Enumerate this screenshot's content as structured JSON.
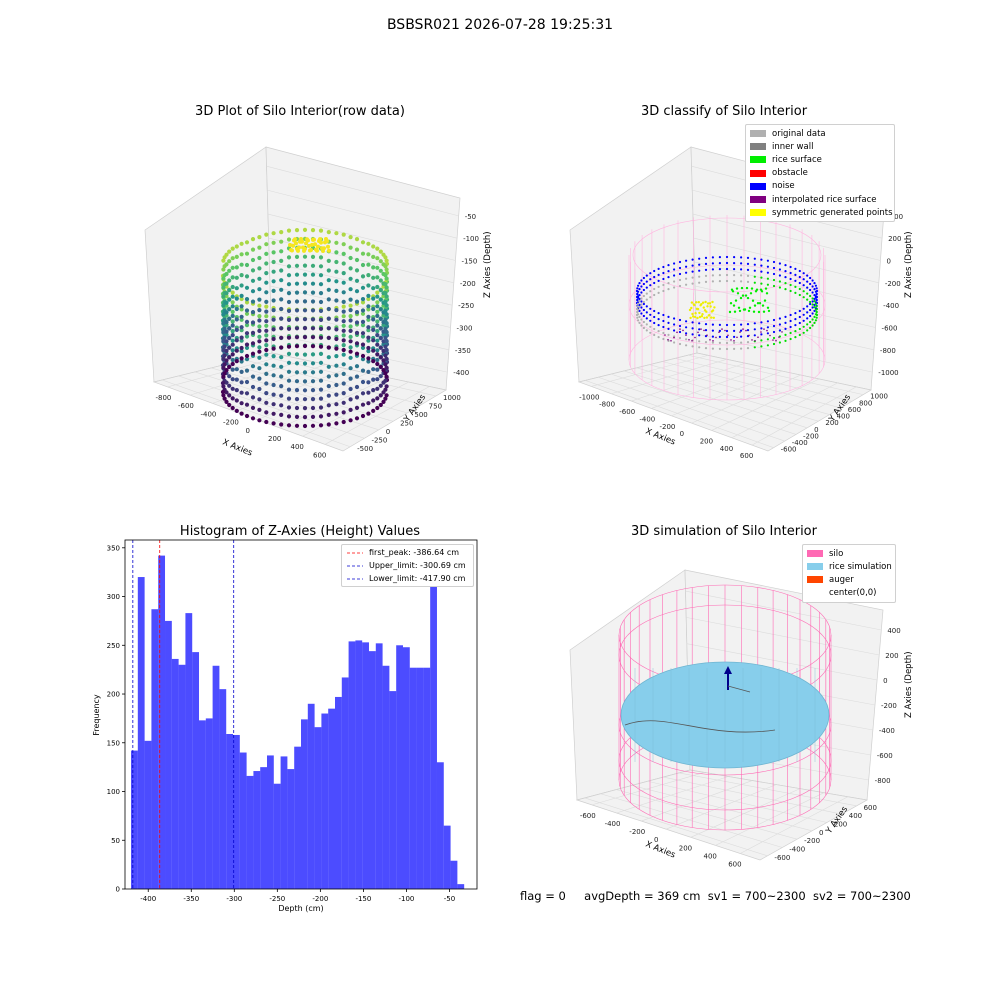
{
  "suptitle": "BSBSR021 2026-07-28 19:25:31",
  "footer": {
    "flag": "flag = 0",
    "avg": "avgDepth = 369 cm",
    "sv1": "sv1 = 700~2300",
    "sv2": "sv2 = 700~2300"
  },
  "chart_data": [
    {
      "type": "scatter3d",
      "title": "3D Plot of Silo Interior(row data)",
      "xlabel": "X Axies",
      "ylabel": "Y Axies",
      "zlabel": "Z Axies (Depth)",
      "x_ticks": [
        "-800",
        "-600",
        "-400",
        "-200",
        "0",
        "200",
        "400",
        "600"
      ],
      "y_ticks": [
        "-500",
        "-250",
        "0",
        "250",
        "500",
        "750",
        "1000"
      ],
      "z_ticks": [
        "-50",
        "-100",
        "-150",
        "-200",
        "-250",
        "-300",
        "-350",
        "-400"
      ],
      "colormap": "viridis",
      "zlim": [
        -430,
        -30
      ]
    },
    {
      "type": "scatter3d",
      "title": "3D classify of Silo Interior",
      "xlabel": "X Axies",
      "ylabel": "Y Axies",
      "zlabel": "Z Axies (Depth)",
      "x_ticks": [
        "-1000",
        "-800",
        "-600",
        "-400",
        "-200",
        "0",
        "200",
        "400",
        "600"
      ],
      "y_ticks": [
        "-600",
        "-400",
        "-200",
        "0",
        "200",
        "400",
        "600",
        "800",
        "1000"
      ],
      "z_ticks": [
        "400",
        "200",
        "0",
        "-200",
        "-400",
        "-600",
        "-800",
        "-1000"
      ],
      "legend_position": "top-right",
      "legend": [
        {
          "label": "original data",
          "color": "#b0b0b0"
        },
        {
          "label": "inner wall",
          "color": "#808080"
        },
        {
          "label": "rice surface",
          "color": "#00ee00"
        },
        {
          "label": "obstacle",
          "color": "#ff0000"
        },
        {
          "label": "noise",
          "color": "#0000ff"
        },
        {
          "label": "interpolated rice surface",
          "color": "#800080"
        },
        {
          "label": "symmetric generated points",
          "color": "#ffff00"
        }
      ]
    },
    {
      "type": "bar",
      "title": "Histogram of Z-Axies (Height) Values",
      "xlabel": "Depth (cm)",
      "ylabel": "Frequency",
      "color": "#0000ff",
      "x_ticks": [
        -400,
        -350,
        -300,
        -250,
        -200,
        -150,
        -100,
        -50
      ],
      "y_ticks": [
        0,
        50,
        100,
        150,
        200,
        250,
        300,
        350
      ],
      "xlim": [
        -427,
        -18
      ],
      "ylim": [
        0,
        358
      ],
      "bin_start": -420,
      "bin_width": 7.9,
      "values": [
        142,
        320,
        152,
        287,
        342,
        275,
        236,
        230,
        283,
        243,
        173,
        175,
        229,
        205,
        159,
        158,
        140,
        116,
        121,
        125,
        137,
        108,
        136,
        123,
        146,
        174,
        190,
        166,
        180,
        185,
        197,
        217,
        254,
        255,
        253,
        244,
        252,
        229,
        203,
        250,
        248,
        227,
        227,
        227,
        335,
        130,
        65,
        29,
        5
      ],
      "lines": [
        {
          "label": "first_peak: -386.64 cm",
          "x": -386.64,
          "color": "#ff0000"
        },
        {
          "label": "Upper_limit: -300.69 cm",
          "x": -300.69,
          "color": "#0000cc"
        },
        {
          "label": "Lower_limit: -417.90 cm",
          "x": -417.9,
          "color": "#0000cc"
        }
      ],
      "legend_position": "top-right"
    },
    {
      "type": "surface3d",
      "title": "3D simulation of Silo Interior",
      "xlabel": "X Axies",
      "ylabel": "Y Axies",
      "zlabel": "Z Axies (Depth)",
      "x_ticks": [
        "-600",
        "-400",
        "-200",
        "0",
        "200",
        "400",
        "600"
      ],
      "y_ticks": [
        "-600",
        "-400",
        "-200",
        "0",
        "200",
        "400",
        "600"
      ],
      "z_ticks": [
        "400",
        "200",
        "0",
        "-200",
        "-400",
        "-600",
        "-800"
      ],
      "legend_position": "top-right",
      "legend": [
        {
          "label": "silo",
          "color": "#ff69b4"
        },
        {
          "label": "rice simulation",
          "color": "#87ceeb"
        },
        {
          "label": "auger",
          "color": "#ff4500"
        },
        {
          "label": "center(0,0)",
          "color": "none"
        }
      ]
    }
  ]
}
